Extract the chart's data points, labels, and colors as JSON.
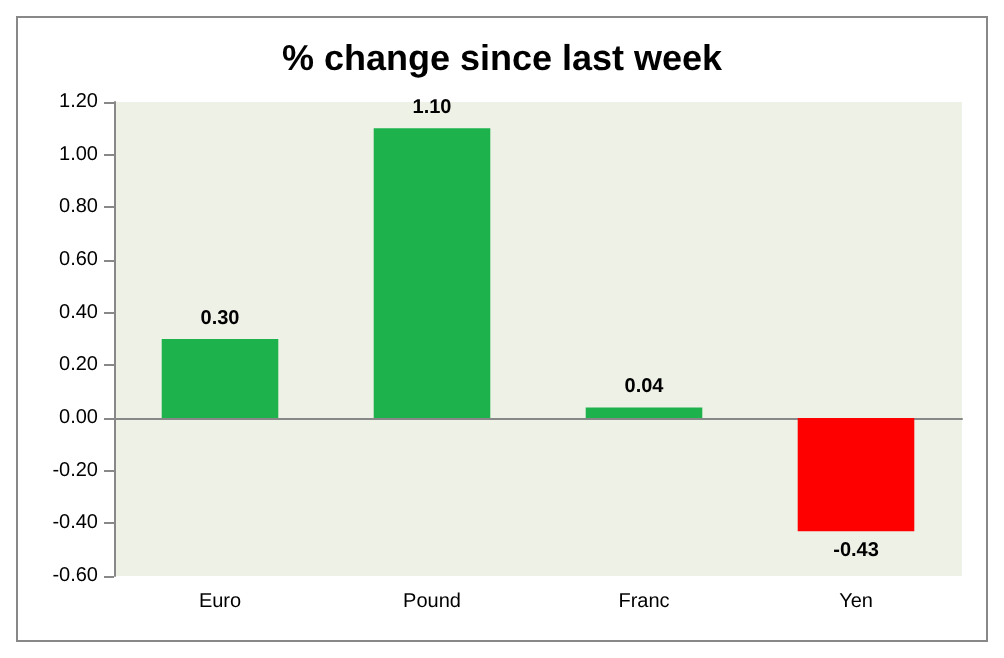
{
  "chart_data": {
    "type": "bar",
    "title": "% change since last week",
    "categories": [
      "Euro",
      "Pound",
      "Franc",
      "Yen"
    ],
    "values": [
      0.3,
      1.1,
      0.04,
      -0.43
    ],
    "colors": [
      "#1db24c",
      "#1db24c",
      "#1db24c",
      "#ff0000"
    ],
    "value_labels": [
      "0.30",
      "1.10",
      "0.04",
      "-0.43"
    ],
    "ylim": [
      -0.6,
      1.2
    ],
    "yticks": [
      {
        "value": -0.6,
        "label": "-0.60"
      },
      {
        "value": -0.4,
        "label": "-0.40"
      },
      {
        "value": -0.2,
        "label": "-0.20"
      },
      {
        "value": 0,
        "label": "0.00"
      },
      {
        "value": 0.2,
        "label": "0.20"
      },
      {
        "value": 0.4,
        "label": "0.40"
      },
      {
        "value": 0.6,
        "label": "0.60"
      },
      {
        "value": 0.8,
        "label": "0.80"
      },
      {
        "value": 1.0,
        "label": "1.00"
      },
      {
        "value": 1.2,
        "label": "1.20"
      }
    ]
  }
}
